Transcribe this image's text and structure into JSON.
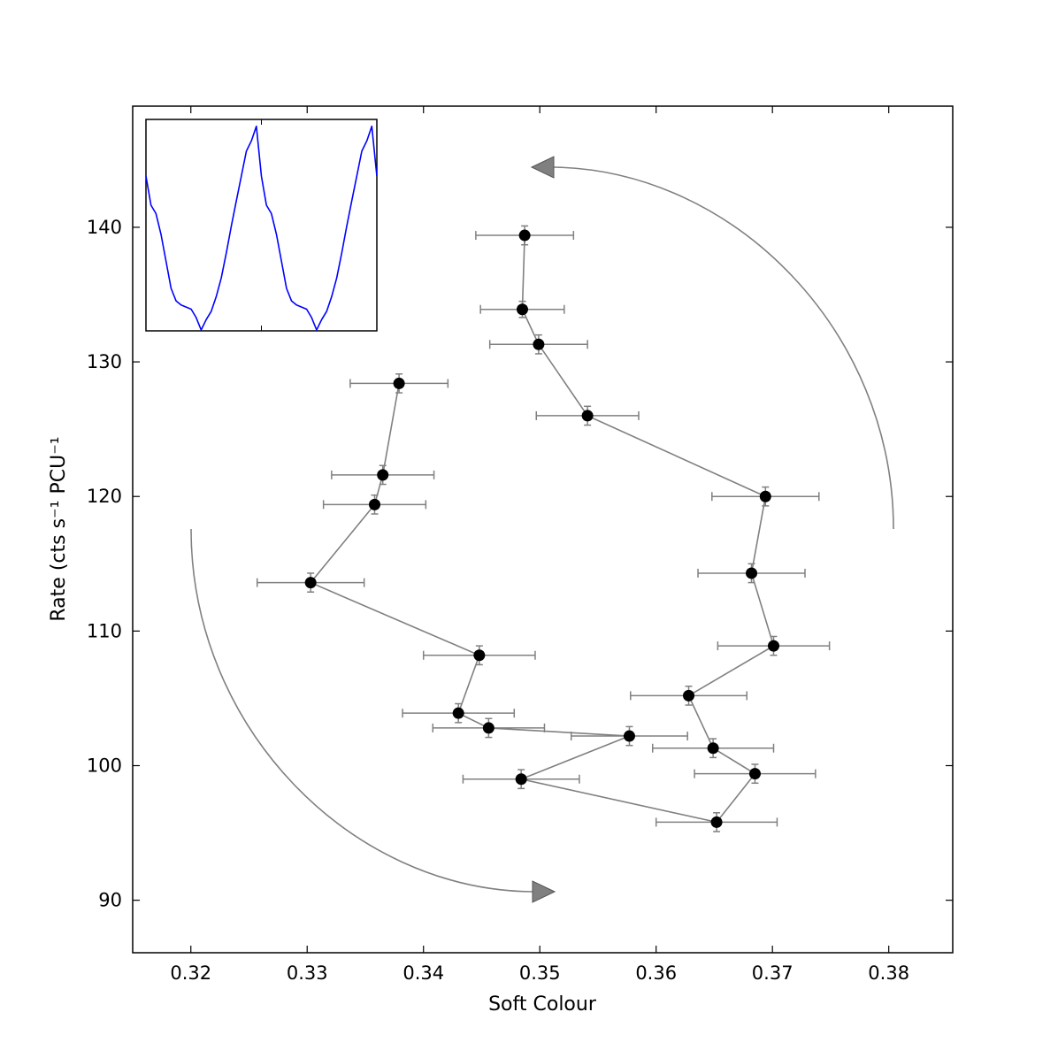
{
  "chart_data": [
    {
      "type": "scatter",
      "name": "main-plot",
      "xlabel": "Soft Colour",
      "ylabel": "Rate (cts s⁻¹ PCU⁻¹",
      "xlim": [
        0.315,
        0.3855
      ],
      "ylim": [
        86.1,
        149.0
      ],
      "xticks": [
        0.32,
        0.33,
        0.34,
        0.35,
        0.36,
        0.37,
        0.38
      ],
      "xtick_labels": [
        "0.32",
        "0.33",
        "0.34",
        "0.35",
        "0.36",
        "0.37",
        "0.38"
      ],
      "yticks": [
        90,
        100,
        110,
        120,
        130,
        140
      ],
      "ytick_labels": [
        "90",
        "100",
        "110",
        "120",
        "130",
        "140"
      ],
      "grid": false,
      "points": [
        {
          "x": 0.3487,
          "y": 139.4,
          "xerr": 0.0042,
          "yerr": 0.7
        },
        {
          "x": 0.3485,
          "y": 133.9,
          "xerr": 0.0036,
          "yerr": 0.6
        },
        {
          "x": 0.3499,
          "y": 131.3,
          "xerr": 0.0042,
          "yerr": 0.7
        },
        {
          "x": 0.3541,
          "y": 126.0,
          "xerr": 0.0044,
          "yerr": 0.7
        },
        {
          "x": 0.3694,
          "y": 120.0,
          "xerr": 0.0046,
          "yerr": 0.7
        },
        {
          "x": 0.3682,
          "y": 114.3,
          "xerr": 0.0046,
          "yerr": 0.7
        },
        {
          "x": 0.3701,
          "y": 108.9,
          "xerr": 0.0048,
          "yerr": 0.7
        },
        {
          "x": 0.3628,
          "y": 105.2,
          "xerr": 0.005,
          "yerr": 0.7
        },
        {
          "x": 0.3649,
          "y": 101.3,
          "xerr": 0.0052,
          "yerr": 0.7
        },
        {
          "x": 0.3685,
          "y": 99.4,
          "xerr": 0.0052,
          "yerr": 0.7
        },
        {
          "x": 0.3652,
          "y": 95.8,
          "xerr": 0.0052,
          "yerr": 0.7
        },
        {
          "x": 0.3484,
          "y": 99.0,
          "xerr": 0.005,
          "yerr": 0.7
        },
        {
          "x": 0.3577,
          "y": 102.2,
          "xerr": 0.005,
          "yerr": 0.7
        },
        {
          "x": 0.3456,
          "y": 102.8,
          "xerr": 0.0048,
          "yerr": 0.7
        },
        {
          "x": 0.343,
          "y": 103.9,
          "xerr": 0.0048,
          "yerr": 0.7
        },
        {
          "x": 0.3448,
          "y": 108.2,
          "xerr": 0.0048,
          "yerr": 0.7
        },
        {
          "x": 0.3303,
          "y": 113.6,
          "xerr": 0.0046,
          "yerr": 0.7
        },
        {
          "x": 0.3358,
          "y": 119.4,
          "xerr": 0.0044,
          "yerr": 0.7
        },
        {
          "x": 0.3365,
          "y": 121.6,
          "xerr": 0.0044,
          "yerr": 0.7
        },
        {
          "x": 0.3379,
          "y": 128.4,
          "xerr": 0.0042,
          "yerr": 0.7
        }
      ],
      "colors": {
        "marker": "#000000",
        "line": "#808080",
        "errorbar": "#808080",
        "arrow": "#808080",
        "arrowhead_fill": "#808080"
      }
    },
    {
      "type": "line",
      "name": "inset-pulse-profile",
      "xlim": [
        0,
        2
      ],
      "ylim": [
        0.0,
        1.0
      ],
      "ticks_shown": false,
      "values": [
        0.74,
        0.6,
        0.56,
        0.46,
        0.33,
        0.2,
        0.14,
        0.12,
        0.11,
        0.1,
        0.06,
        0.0,
        0.05,
        0.09,
        0.16,
        0.25,
        0.37,
        0.5,
        0.62,
        0.74,
        0.86,
        0.91,
        0.98,
        0.74,
        0.6,
        0.56,
        0.46,
        0.33,
        0.2,
        0.14,
        0.12,
        0.11,
        0.1,
        0.06,
        0.0,
        0.05,
        0.09,
        0.16,
        0.25,
        0.37,
        0.5,
        0.62,
        0.74,
        0.86,
        0.91,
        0.98,
        0.74
      ],
      "colors": {
        "line": "#0000ff"
      }
    }
  ]
}
